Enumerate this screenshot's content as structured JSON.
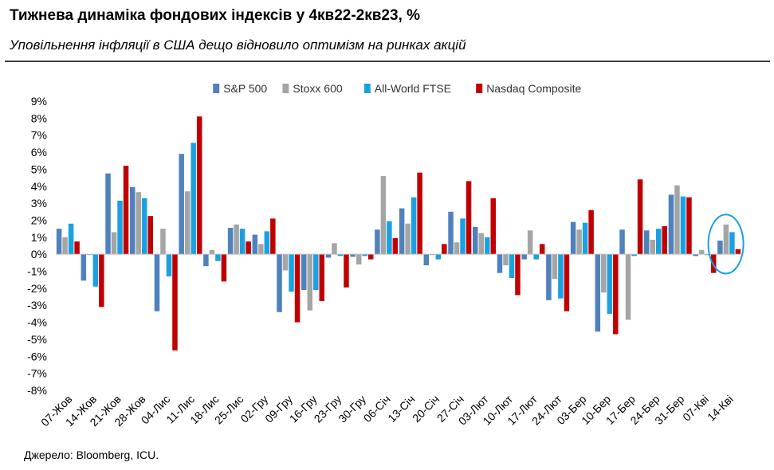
{
  "header": {
    "title": "Тижнева динаміка фондових індексів у 4кв22-2кв23, %",
    "subtitle": "Уповільнення інфляції в США дещо відновило оптимізм на ринках акцій"
  },
  "footer": {
    "source": "Джерело: Bloomberg, ICU."
  },
  "chart_data": {
    "type": "bar",
    "title": "Тижнева динаміка фондових індексів у 4кв22-2кв23, %",
    "xlabel": "",
    "ylabel": "",
    "ylim": [
      -8,
      9
    ],
    "yticks": [
      "9%",
      "8%",
      "7%",
      "6%",
      "5%",
      "4%",
      "3%",
      "2%",
      "1%",
      "0%",
      "-1%",
      "-2%",
      "-3%",
      "-4%",
      "-5%",
      "-6%",
      "-7%",
      "-8%"
    ],
    "grid": false,
    "legend_position": "top-center",
    "annotation": "highlight-ellipse-around-14-Кві",
    "categories": [
      "07-Жов",
      "14-Жов",
      "21-Жов",
      "28-Жов",
      "04-Лис",
      "11-Лис",
      "18-Лис",
      "25-Лис",
      "02-Гру",
      "09-Гру",
      "16-Гру",
      "23-Гру",
      "30-Гру",
      "06-Січ",
      "13-Січ",
      "20-Січ",
      "27-Січ",
      "03-Лют",
      "10-Лют",
      "17-Лют",
      "24-Лют",
      "03-Бер",
      "10-Бер",
      "17-Бер",
      "24-Бер",
      "31-Бер",
      "07-Кві",
      "14-Кві"
    ],
    "series": [
      {
        "name": "S&P 500",
        "color": "#4F81BD",
        "values": [
          1.5,
          -1.55,
          4.75,
          3.95,
          -3.35,
          5.9,
          -0.7,
          1.55,
          1.15,
          -3.4,
          -2.1,
          -0.2,
          -0.15,
          1.45,
          2.7,
          -0.65,
          2.5,
          1.6,
          -1.1,
          -0.3,
          -2.7,
          1.9,
          -4.55,
          1.45,
          1.4,
          3.5,
          -0.1,
          0.8
        ]
      },
      {
        "name": "Stoxx 600",
        "color": "#A5A5A5",
        "values": [
          1.0,
          -0.05,
          1.3,
          3.65,
          1.5,
          3.7,
          0.25,
          1.75,
          0.6,
          -0.95,
          -3.3,
          0.65,
          -0.6,
          4.6,
          1.8,
          -0.05,
          0.7,
          1.25,
          -0.65,
          1.4,
          -1.45,
          1.45,
          -2.25,
          -3.85,
          0.85,
          4.05,
          0.25,
          1.75
        ]
      },
      {
        "name": "All-World FTSE",
        "color": "#1BA1E2",
        "values": [
          1.8,
          -1.9,
          3.15,
          3.3,
          -1.3,
          6.55,
          -0.4,
          1.5,
          1.35,
          -2.2,
          -2.1,
          -0.1,
          -0.1,
          1.95,
          3.35,
          -0.3,
          2.1,
          1.0,
          -1.4,
          -0.3,
          -2.6,
          1.85,
          -3.5,
          -0.1,
          1.5,
          3.4,
          -0.05,
          1.3
        ]
      },
      {
        "name": "Nasdaq Composite",
        "color": "#C00000",
        "values": [
          0.75,
          -3.1,
          5.2,
          2.25,
          -5.65,
          8.1,
          -1.6,
          0.75,
          2.1,
          -4.0,
          -2.75,
          -1.95,
          -0.3,
          0.95,
          4.8,
          0.6,
          4.3,
          3.3,
          -2.4,
          0.6,
          -3.35,
          2.6,
          -4.7,
          4.4,
          1.65,
          3.35,
          -1.1,
          0.3
        ]
      }
    ]
  }
}
